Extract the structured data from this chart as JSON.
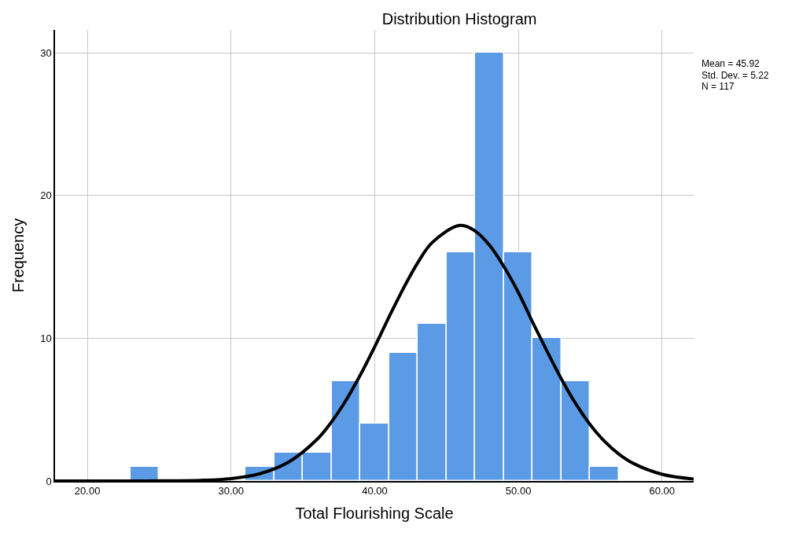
{
  "chart_data": {
    "type": "histogram",
    "title": "Distribution Histogram",
    "xlabel": "Total Flourishing Scale",
    "ylabel": "Frequency",
    "bins": [
      23,
      25,
      27,
      29,
      31,
      33,
      35,
      37,
      39,
      41,
      43,
      45,
      47,
      49,
      51,
      53,
      55,
      57
    ],
    "values": [
      1,
      0,
      0,
      0,
      1,
      2,
      2,
      7,
      4,
      9,
      11,
      16,
      30,
      16,
      10,
      7,
      1
    ],
    "color": "#5b9be5",
    "series": [
      {
        "type": "line",
        "color": "#000000",
        "x": [
          17.75,
          22,
          25,
          28,
          30,
          32,
          34,
          36,
          37,
          38,
          39,
          40,
          41,
          42,
          43,
          44,
          45.92,
          47,
          48,
          49,
          50,
          51,
          52,
          53,
          54,
          55,
          56,
          57,
          58,
          60,
          62.2
        ],
        "values": [
          0,
          0,
          0.01,
          0.05,
          0.17,
          0.51,
          1.32,
          2.93,
          4.15,
          5.66,
          7.43,
          9.41,
          11.5,
          13.5,
          15.3,
          16.7,
          17.9,
          17.5,
          16.5,
          15.0,
          13.2,
          11.1,
          9.08,
          7.13,
          5.4,
          3.94,
          2.77,
          1.88,
          1.23,
          0.47,
          0.14
        ]
      }
    ],
    "xlim": [
      17.75,
      62.2
    ],
    "xticks": [
      {
        "value": 20,
        "label": "20.00"
      },
      {
        "value": 30,
        "label": "30.00"
      },
      {
        "value": 40,
        "label": "40.00"
      },
      {
        "value": 50,
        "label": "50.00"
      },
      {
        "value": 60,
        "label": "60.00"
      }
    ],
    "ylim": [
      0,
      31.6
    ],
    "yticks": [
      0,
      10,
      20,
      30
    ],
    "grid": true,
    "marker": "none",
    "line_style": "solid",
    "annotations": [
      "Mean = 45.92",
      "Std. Dev. = 5.22",
      "N = 117"
    ]
  }
}
